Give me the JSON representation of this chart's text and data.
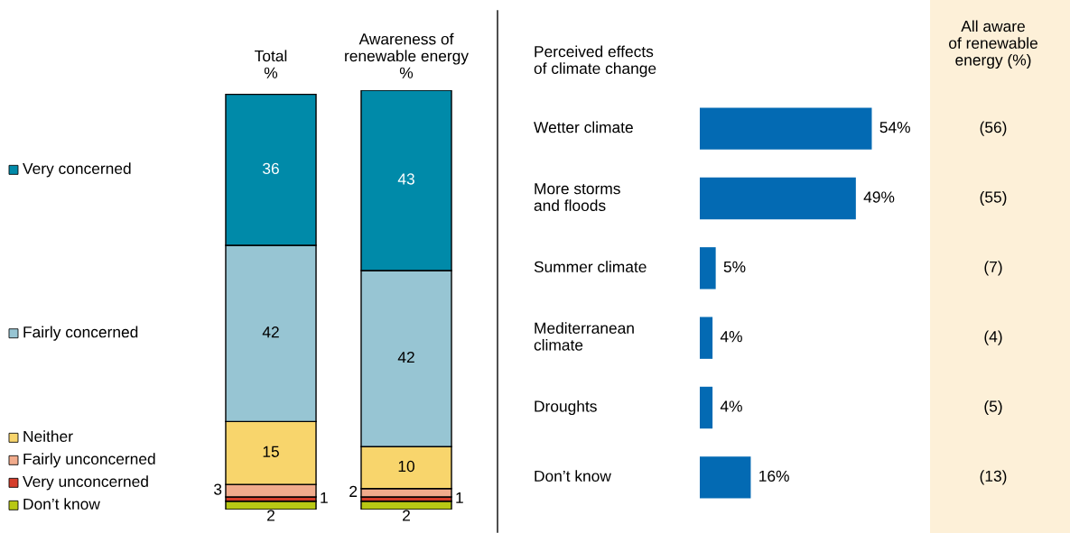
{
  "chart_data": [
    {
      "type": "bar",
      "stacked": true,
      "categories": [
        "Total\n%",
        "Awareness of\nrenewable energy\n%"
      ],
      "ylim": [
        0,
        100
      ],
      "tick_labels": "x",
      "data_labels": true,
      "legend": "left",
      "series": [
        {
          "name": "Don’t know",
          "color": "#b8c814",
          "values": [
            2,
            2
          ]
        },
        {
          "name": "Very unconcerned",
          "color": "#d53d2a",
          "values": [
            1,
            1
          ]
        },
        {
          "name": "Fairly unconcerned",
          "color": "#f1ab8c",
          "values": [
            3,
            2
          ]
        },
        {
          "name": "Neither",
          "color": "#f8d56c",
          "values": [
            15,
            10
          ]
        },
        {
          "name": "Fairly concerned",
          "color": "#97c5d3",
          "values": [
            42,
            42
          ]
        },
        {
          "name": "Very concerned",
          "color": "#008aa9",
          "values": [
            36,
            43
          ]
        }
      ]
    },
    {
      "type": "bar",
      "orientation": "horizontal",
      "title": "Perceived effects\nof climate change",
      "categories": [
        "Wetter climate",
        "More storms\nand floods",
        "Summer climate",
        "Mediterranean\nclimate",
        "Droughts",
        "Don’t know"
      ],
      "values": [
        54,
        49,
        5,
        4,
        4,
        16
      ],
      "value_labels": [
        "54%",
        "49%",
        "5%",
        "4%",
        "4%",
        "16%"
      ],
      "color": "#036ab3",
      "tick_labels": "y"
    },
    {
      "type": "other",
      "title": "All aware\nof renewable\nenergy (%)",
      "annotations": [
        "(56)",
        "(55)",
        "(7)",
        "(4)",
        "(5)",
        "(13)"
      ]
    }
  ]
}
